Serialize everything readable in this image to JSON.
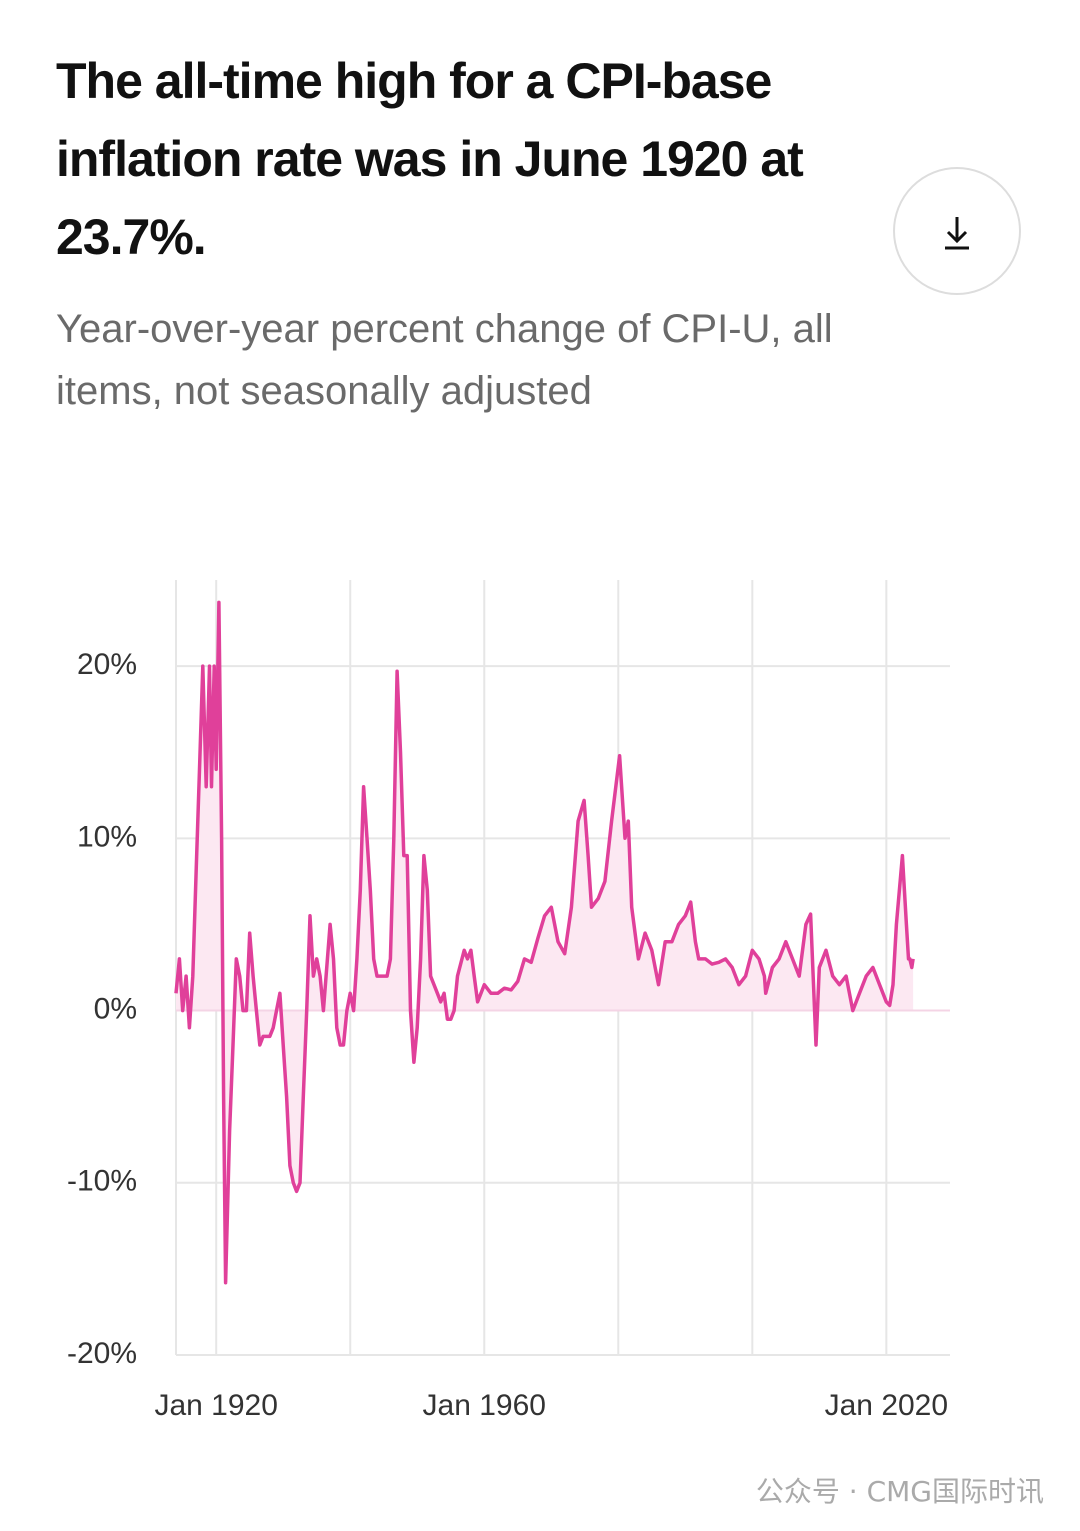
{
  "header": {
    "title": "The all-time high for a CPI-base inflation rate was in June 1920 at 23.7%.",
    "subtitle": "Year-over-year percent change of CPI-U, all items, not seasonally adjusted"
  },
  "chart_data": {
    "type": "line",
    "color": "#e0409a",
    "area_color": "#fce8f2",
    "grid": true,
    "xlim": [
      1914,
      2029.5
    ],
    "ylim": [
      -20,
      25
    ],
    "xticks": [
      {
        "value": 1920,
        "label": "Jan 1920"
      },
      {
        "value": 1940,
        "label": null
      },
      {
        "value": 1960,
        "label": "Jan 1960"
      },
      {
        "value": 1980,
        "label": null
      },
      {
        "value": 2000,
        "label": null
      },
      {
        "value": 2020,
        "label": "Jan 2020"
      }
    ],
    "yticks": [
      {
        "value": -20,
        "label": "-20%"
      },
      {
        "value": -10,
        "label": "-10%"
      },
      {
        "value": 0,
        "label": "0%"
      },
      {
        "value": 10,
        "label": "10%"
      },
      {
        "value": 20,
        "label": "20%"
      }
    ],
    "series": [
      {
        "x": [
          1914,
          1914.5,
          1915,
          1915.5,
          1916,
          1916.5,
          1917,
          1917.5,
          1918,
          1918.5,
          1919,
          1919.3,
          1919.7,
          1920,
          1920.4,
          1920.8,
          1921.1,
          1921.4,
          1922,
          1922.5,
          1923,
          1923.5,
          1924,
          1924.5,
          1925,
          1925.5,
          1926,
          1926.5,
          1927,
          1928,
          1928.5,
          1929,
          1929.5,
          1930,
          1930.5,
          1931,
          1931.5,
          1932,
          1932.5,
          1933,
          1933.5,
          1934,
          1934.5,
          1935,
          1935.5,
          1936,
          1937,
          1937.5,
          1938,
          1938.5,
          1939,
          1939.5,
          1940,
          1940.5,
          1941,
          1941.5,
          1942,
          1942.5,
          1943,
          1943.5,
          1944,
          1945,
          1945.5,
          1946,
          1946.5,
          1947,
          1947.5,
          1948,
          1948.5,
          1949,
          1949.5,
          1950,
          1950.5,
          1951,
          1951.5,
          1952,
          1953,
          1953.5,
          1954,
          1954.5,
          1955,
          1955.5,
          1956,
          1957,
          1957.5,
          1958,
          1958.5,
          1959,
          1960,
          1961,
          1962,
          1963,
          1964,
          1965,
          1966,
          1967,
          1968,
          1969,
          1970,
          1971,
          1972,
          1973,
          1974,
          1974.9,
          1975.5,
          1976,
          1977,
          1978,
          1979,
          1980.2,
          1981,
          1981.5,
          1982,
          1983,
          1984,
          1985,
          1986,
          1987,
          1988,
          1989,
          1990,
          1990.8,
          1991.5,
          1992,
          1993,
          1994,
          1995,
          1996,
          1997,
          1998,
          1999,
          2000,
          2001,
          2001.8,
          2002,
          2003,
          2004,
          2005,
          2006,
          2007,
          2008,
          2008.7,
          2009.5,
          2010,
          2011,
          2012,
          2013,
          2014,
          2015,
          2016,
          2017,
          2018,
          2019,
          2020,
          2020.5,
          2021,
          2021.5,
          2022.4,
          2023,
          2023.3,
          2023.5,
          2023.8,
          2024
        ],
        "values": [
          1,
          3,
          0,
          2,
          -1,
          2,
          8,
          14,
          20,
          13,
          20,
          13,
          20,
          14,
          23.7,
          10,
          -5,
          -15.8,
          -7,
          -2,
          3,
          2,
          0,
          0,
          4.5,
          2,
          0,
          -2,
          -1.5,
          -1.5,
          -1,
          0,
          1,
          -2,
          -5,
          -9,
          -10,
          -10.5,
          -10,
          -5,
          0,
          5.5,
          2,
          3,
          2,
          0,
          5,
          3,
          -1,
          -2,
          -2,
          0,
          1,
          0,
          3,
          7,
          13,
          10,
          7,
          3,
          2,
          2,
          2,
          3,
          10,
          19.7,
          15,
          9,
          9,
          0,
          -3,
          -1,
          3,
          9,
          7,
          2,
          1,
          0.5,
          1,
          -0.5,
          -0.5,
          0,
          2,
          3.5,
          3,
          3.5,
          2,
          0.5,
          1.5,
          1,
          1,
          1.3,
          1.2,
          1.7,
          3,
          2.8,
          4.2,
          5.5,
          6,
          4,
          3.3,
          6,
          11,
          12.2,
          9,
          6,
          6.5,
          7.5,
          11,
          14.8,
          10,
          11,
          6,
          3,
          4.5,
          3.5,
          1.5,
          4,
          4,
          5,
          5.5,
          6.3,
          4,
          3,
          3,
          2.7,
          2.8,
          3,
          2.5,
          1.5,
          2,
          3.5,
          3,
          2,
          1,
          2.5,
          3,
          4,
          3,
          2,
          5,
          5.6,
          -2,
          2.5,
          3.5,
          2,
          1.5,
          2,
          0,
          1,
          2,
          2.5,
          1.5,
          0.5,
          0.3,
          1.5,
          5,
          9,
          5,
          3,
          3,
          2.5,
          3
        ]
      }
    ]
  },
  "watermark": "公众号 · CMG国际时讯"
}
